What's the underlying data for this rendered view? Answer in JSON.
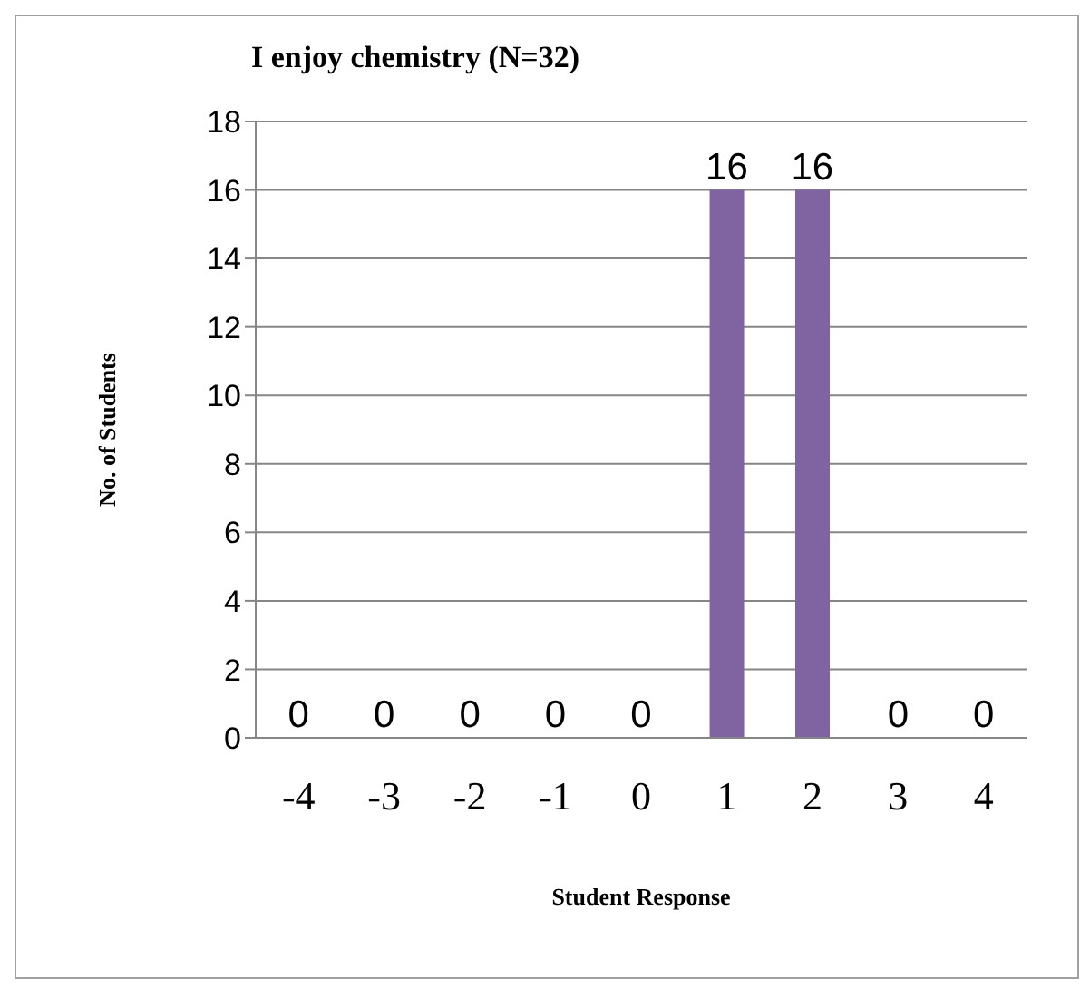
{
  "chart_data": {
    "type": "bar",
    "title": "I enjoy chemistry (N=32)",
    "xlabel": "Student Response",
    "ylabel": "No. of Students",
    "categories": [
      "-4",
      "-3",
      "-2",
      "-1",
      "0",
      "1",
      "2",
      "3",
      "4"
    ],
    "values": [
      0,
      0,
      0,
      0,
      0,
      16,
      16,
      0,
      0
    ],
    "color": "#8064a2",
    "ylim": [
      0,
      18
    ],
    "yticks": [
      0,
      2,
      4,
      6,
      8,
      10,
      12,
      14,
      16,
      18
    ],
    "grid": "y",
    "data_labels": true
  }
}
